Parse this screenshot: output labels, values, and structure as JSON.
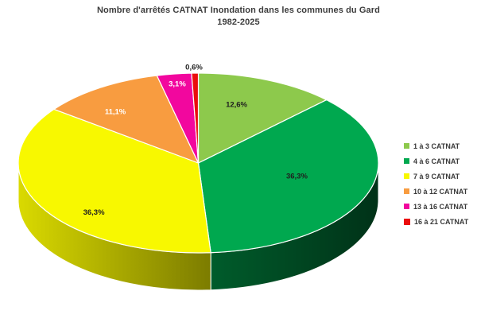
{
  "title": {
    "line1": "Nombre d'arrêtés CATNAT Inondation dans les communes du Gard",
    "line2": "1982-2025"
  },
  "chart_data": {
    "type": "pie",
    "is_3d": true,
    "title": "Nombre d'arrêtés CATNAT Inondation dans les communes du Gard 1982-2025",
    "unit": "%",
    "legend_position": "right",
    "grid": false,
    "slices": [
      {
        "label": "1 à 3 CATNAT",
        "value": 12.6,
        "display": "12,6%",
        "color": "#8dc94c"
      },
      {
        "label": "4 à 6 CATNAT",
        "value": 36.3,
        "display": "36,3%",
        "color": "#00a84f"
      },
      {
        "label": "7 à 9 CATNAT",
        "value": 36.3,
        "display": "36,3%",
        "color": "#f8f800"
      },
      {
        "label": "10 à 12 CATNAT",
        "value": 11.1,
        "display": "11,1%",
        "color": "#f89c40"
      },
      {
        "label": "13 à 16 CATNAT",
        "value": 3.1,
        "display": "3,1%",
        "color": "#f2079e"
      },
      {
        "label": "16 à 21 CATNAT",
        "value": 0.6,
        "display": "0,6%",
        "color": "#eb0d0d"
      }
    ]
  }
}
